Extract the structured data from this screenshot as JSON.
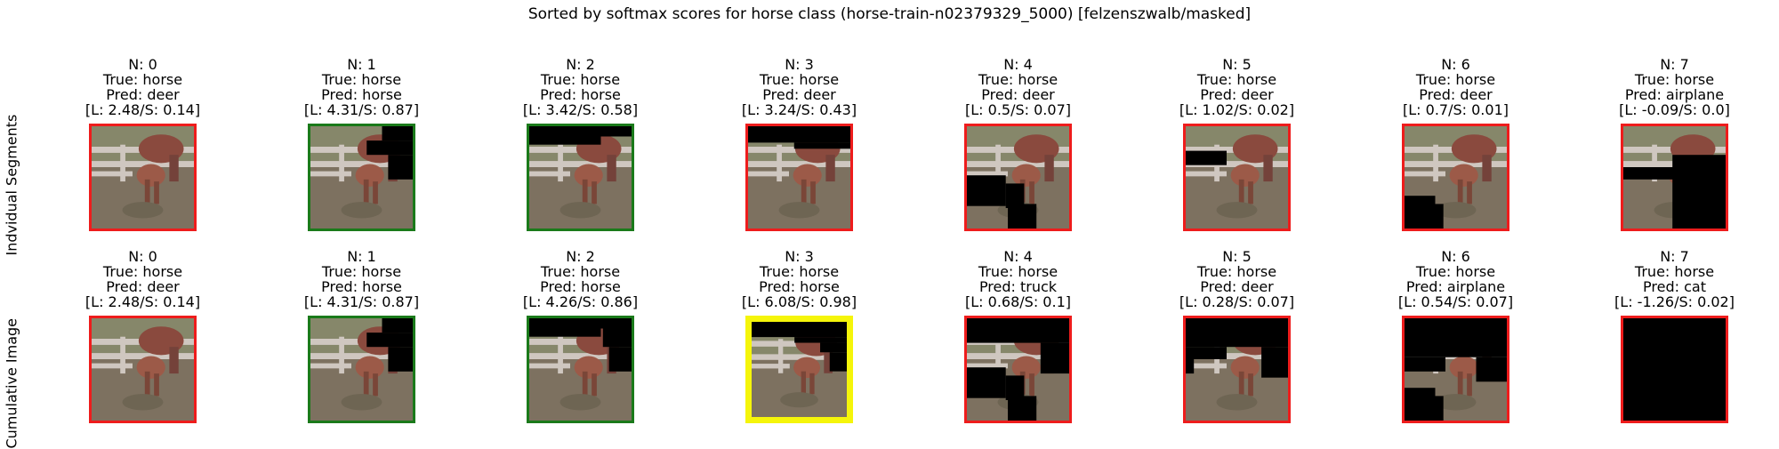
{
  "chart_data": {
    "type": "image_grid",
    "title": "Sorted by softmax scores for horse class (horse-train-n02379329_5000) [felzenszwalb/masked]",
    "rows": [
      {
        "label": "Indvidual Segments",
        "cells": [
          {
            "n": "N: 0",
            "true": "True: horse",
            "pred": "Pred: deer",
            "scores": "[L: 2.48/S: 0.14]",
            "border": "red"
          },
          {
            "n": "N: 1",
            "true": "True: horse",
            "pred": "Pred: horse",
            "scores": "[L: 4.31/S: 0.87]",
            "border": "green"
          },
          {
            "n": "N: 2",
            "true": "True: horse",
            "pred": "Pred: horse",
            "scores": "[L: 3.42/S: 0.58]",
            "border": "green"
          },
          {
            "n": "N: 3",
            "true": "True: horse",
            "pred": "Pred: deer",
            "scores": "[L: 3.24/S: 0.43]",
            "border": "red"
          },
          {
            "n": "N: 4",
            "true": "True: horse",
            "pred": "Pred: deer",
            "scores": "[L: 0.5/S: 0.07]",
            "border": "red"
          },
          {
            "n": "N: 5",
            "true": "True: horse",
            "pred": "Pred: deer",
            "scores": "[L: 1.02/S: 0.02]",
            "border": "red"
          },
          {
            "n": "N: 6",
            "true": "True: horse",
            "pred": "Pred: deer",
            "scores": "[L: 0.7/S: 0.01]",
            "border": "red"
          },
          {
            "n": "N: 7",
            "true": "True: horse",
            "pred": "Pred: airplane",
            "scores": "[L: -0.09/S: 0.0]",
            "border": "red"
          }
        ]
      },
      {
        "label": "Cumulative Image",
        "cells": [
          {
            "n": "N: 0",
            "true": "True: horse",
            "pred": "Pred: deer",
            "scores": "[L: 2.48/S: 0.14]",
            "border": "red"
          },
          {
            "n": "N: 1",
            "true": "True: horse",
            "pred": "Pred: horse",
            "scores": "[L: 4.31/S: 0.87]",
            "border": "green"
          },
          {
            "n": "N: 2",
            "true": "True: horse",
            "pred": "Pred: horse",
            "scores": "[L: 4.26/S: 0.86]",
            "border": "green"
          },
          {
            "n": "N: 3",
            "true": "True: horse",
            "pred": "Pred: horse",
            "scores": "[L: 6.08/S: 0.98]",
            "border": "yellow"
          },
          {
            "n": "N: 4",
            "true": "True: horse",
            "pred": "Pred: truck",
            "scores": "[L: 0.68/S: 0.1]",
            "border": "red"
          },
          {
            "n": "N: 5",
            "true": "True: horse",
            "pred": "Pred: deer",
            "scores": "[L: 0.28/S: 0.07]",
            "border": "red"
          },
          {
            "n": "N: 6",
            "true": "True: horse",
            "pred": "Pred: airplane",
            "scores": "[L: 0.54/S: 0.07]",
            "border": "red"
          },
          {
            "n": "N: 7",
            "true": "True: horse",
            "pred": "Pred: cat",
            "scores": "[L: -1.26/S: 0.02]",
            "border": "red"
          }
        ]
      }
    ]
  },
  "colors": {
    "red": "#ee1c1c",
    "green": "#1a7a1a",
    "yellow": "#f5f50a",
    "mask": "#000000",
    "grass": "#7d7160",
    "background": "#86876a",
    "fence": "#cfc7c0",
    "horse": "#8a4a3e"
  }
}
